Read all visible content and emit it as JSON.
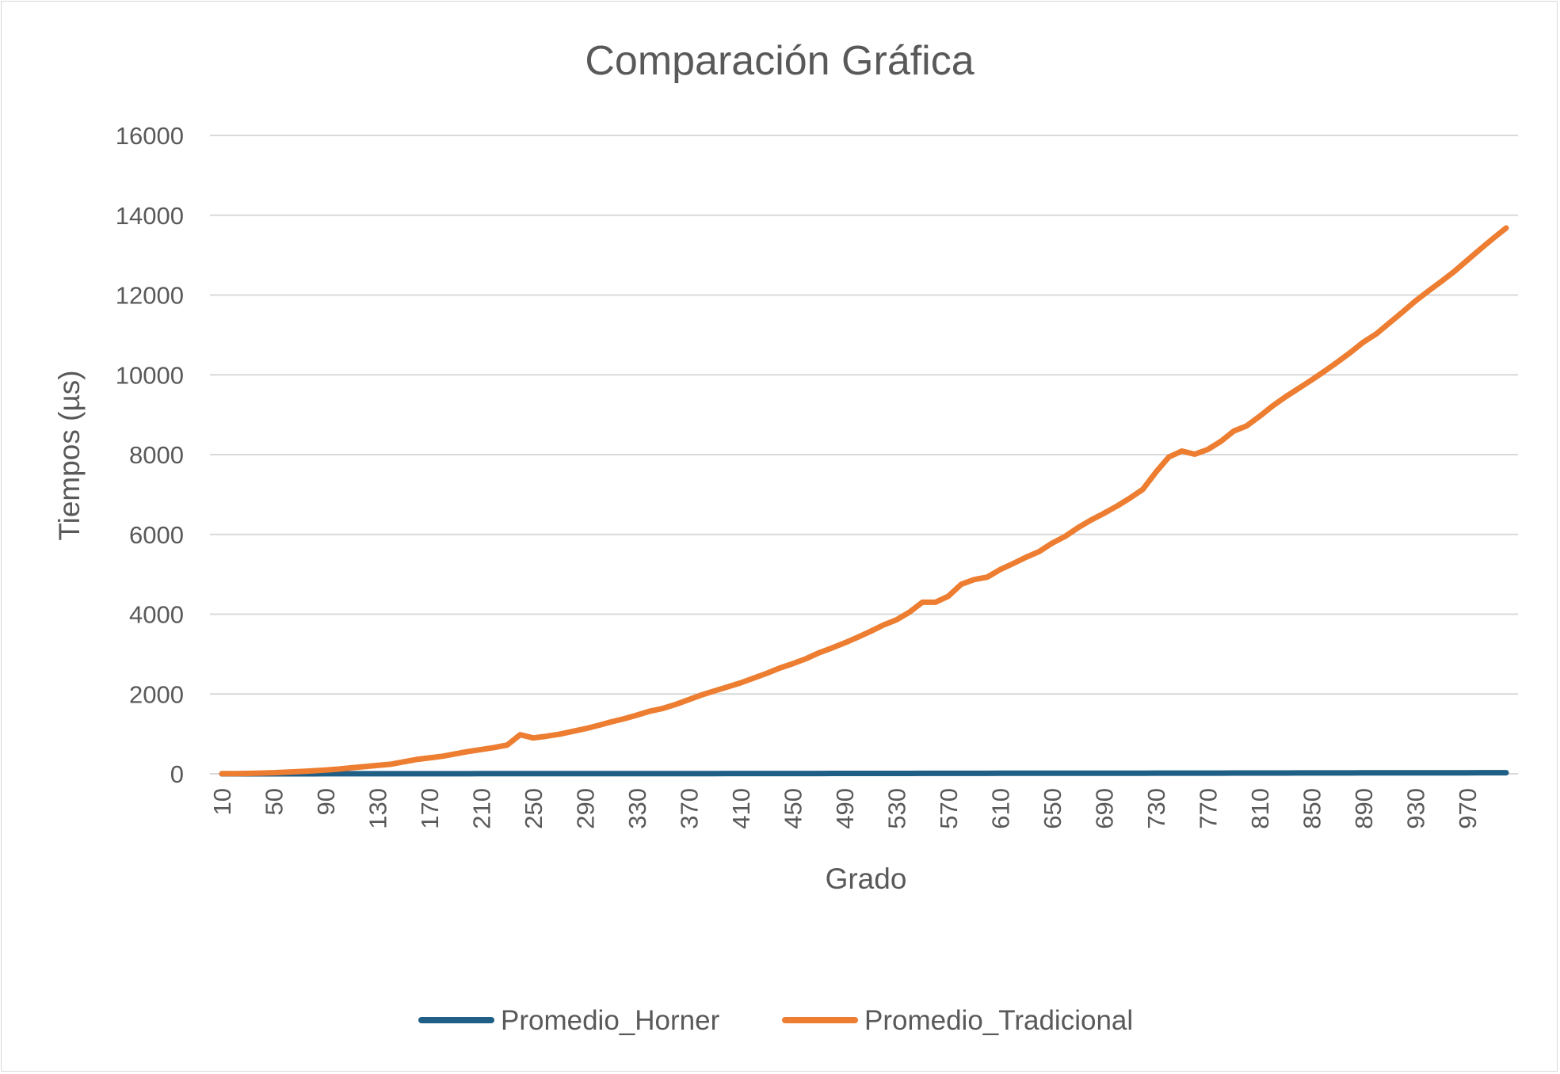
{
  "chart_data": {
    "type": "line",
    "title": "Comparación Gráfica",
    "xlabel": "Grado",
    "ylabel": "Tiempos (µs)",
    "ylim": [
      0,
      16000
    ],
    "yticks": [
      0,
      2000,
      4000,
      6000,
      8000,
      10000,
      12000,
      14000,
      16000
    ],
    "xtick_labels": [
      "10",
      "50",
      "90",
      "130",
      "170",
      "210",
      "250",
      "290",
      "330",
      "370",
      "410",
      "450",
      "490",
      "530",
      "570",
      "610",
      "650",
      "690",
      "730",
      "770",
      "810",
      "850",
      "890",
      "930",
      "970"
    ],
    "grid": true,
    "legend_position": "bottom",
    "x": [
      10,
      20,
      30,
      40,
      50,
      60,
      70,
      80,
      90,
      100,
      110,
      120,
      130,
      140,
      150,
      160,
      170,
      180,
      190,
      200,
      210,
      220,
      230,
      240,
      250,
      260,
      270,
      280,
      290,
      300,
      310,
      320,
      330,
      340,
      350,
      360,
      370,
      380,
      390,
      400,
      410,
      420,
      430,
      440,
      450,
      460,
      470,
      480,
      490,
      500,
      510,
      520,
      530,
      540,
      550,
      560,
      570,
      580,
      590,
      600,
      610,
      620,
      630,
      640,
      650,
      660,
      670,
      680,
      690,
      700,
      710,
      720,
      730,
      740,
      750,
      760,
      770,
      780,
      790,
      800,
      810,
      820,
      830,
      840,
      850,
      860,
      870,
      880,
      890,
      900,
      910,
      920,
      930,
      940,
      950,
      960,
      970,
      980,
      990,
      1000
    ],
    "series": [
      {
        "name": "Promedio_Horner",
        "color": "#1f5f86",
        "values": [
          0,
          0,
          0,
          0,
          0,
          0,
          0,
          0,
          1,
          1,
          1,
          1,
          1,
          1,
          2,
          2,
          2,
          2,
          2,
          2,
          3,
          3,
          3,
          3,
          3,
          3,
          4,
          4,
          4,
          4,
          4,
          5,
          5,
          5,
          5,
          6,
          6,
          6,
          6,
          7,
          7,
          7,
          7,
          8,
          8,
          8,
          8,
          9,
          9,
          9,
          9,
          10,
          10,
          10,
          11,
          11,
          11,
          12,
          12,
          12,
          13,
          13,
          13,
          14,
          14,
          14,
          15,
          15,
          15,
          16,
          16,
          16,
          17,
          17,
          17,
          18,
          18,
          18,
          19,
          19,
          20,
          20,
          20,
          21,
          21,
          22,
          22,
          22,
          23,
          23,
          24,
          24,
          25,
          25,
          25,
          26,
          26,
          27,
          27,
          28
        ]
      },
      {
        "name": "Promedio_Tradicional",
        "color": "#ed7d31",
        "values": [
          3,
          6,
          10,
          18,
          28,
          42,
          58,
          76,
          96,
          120,
          150,
          180,
          210,
          240,
          300,
          360,
          400,
          440,
          500,
          560,
          610,
          660,
          720,
          980,
          900,
          940,
          990,
          1060,
          1130,
          1210,
          1300,
          1380,
          1470,
          1570,
          1640,
          1740,
          1860,
          1980,
          2080,
          2180,
          2280,
          2400,
          2520,
          2650,
          2760,
          2880,
          3030,
          3150,
          3280,
          3420,
          3570,
          3730,
          3860,
          4050,
          4300,
          4300,
          4450,
          4750,
          4870,
          4930,
          5120,
          5270,
          5430,
          5570,
          5780,
          5950,
          6170,
          6360,
          6530,
          6710,
          6910,
          7130,
          7560,
          7940,
          8090,
          8010,
          8130,
          8330,
          8590,
          8720,
          8960,
          9220,
          9450,
          9660,
          9870,
          10090,
          10320,
          10560,
          10820,
          11030,
          11300,
          11570,
          11850,
          12100,
          12340,
          12590,
          12870,
          13150,
          13420,
          13680
        ]
      }
    ]
  }
}
